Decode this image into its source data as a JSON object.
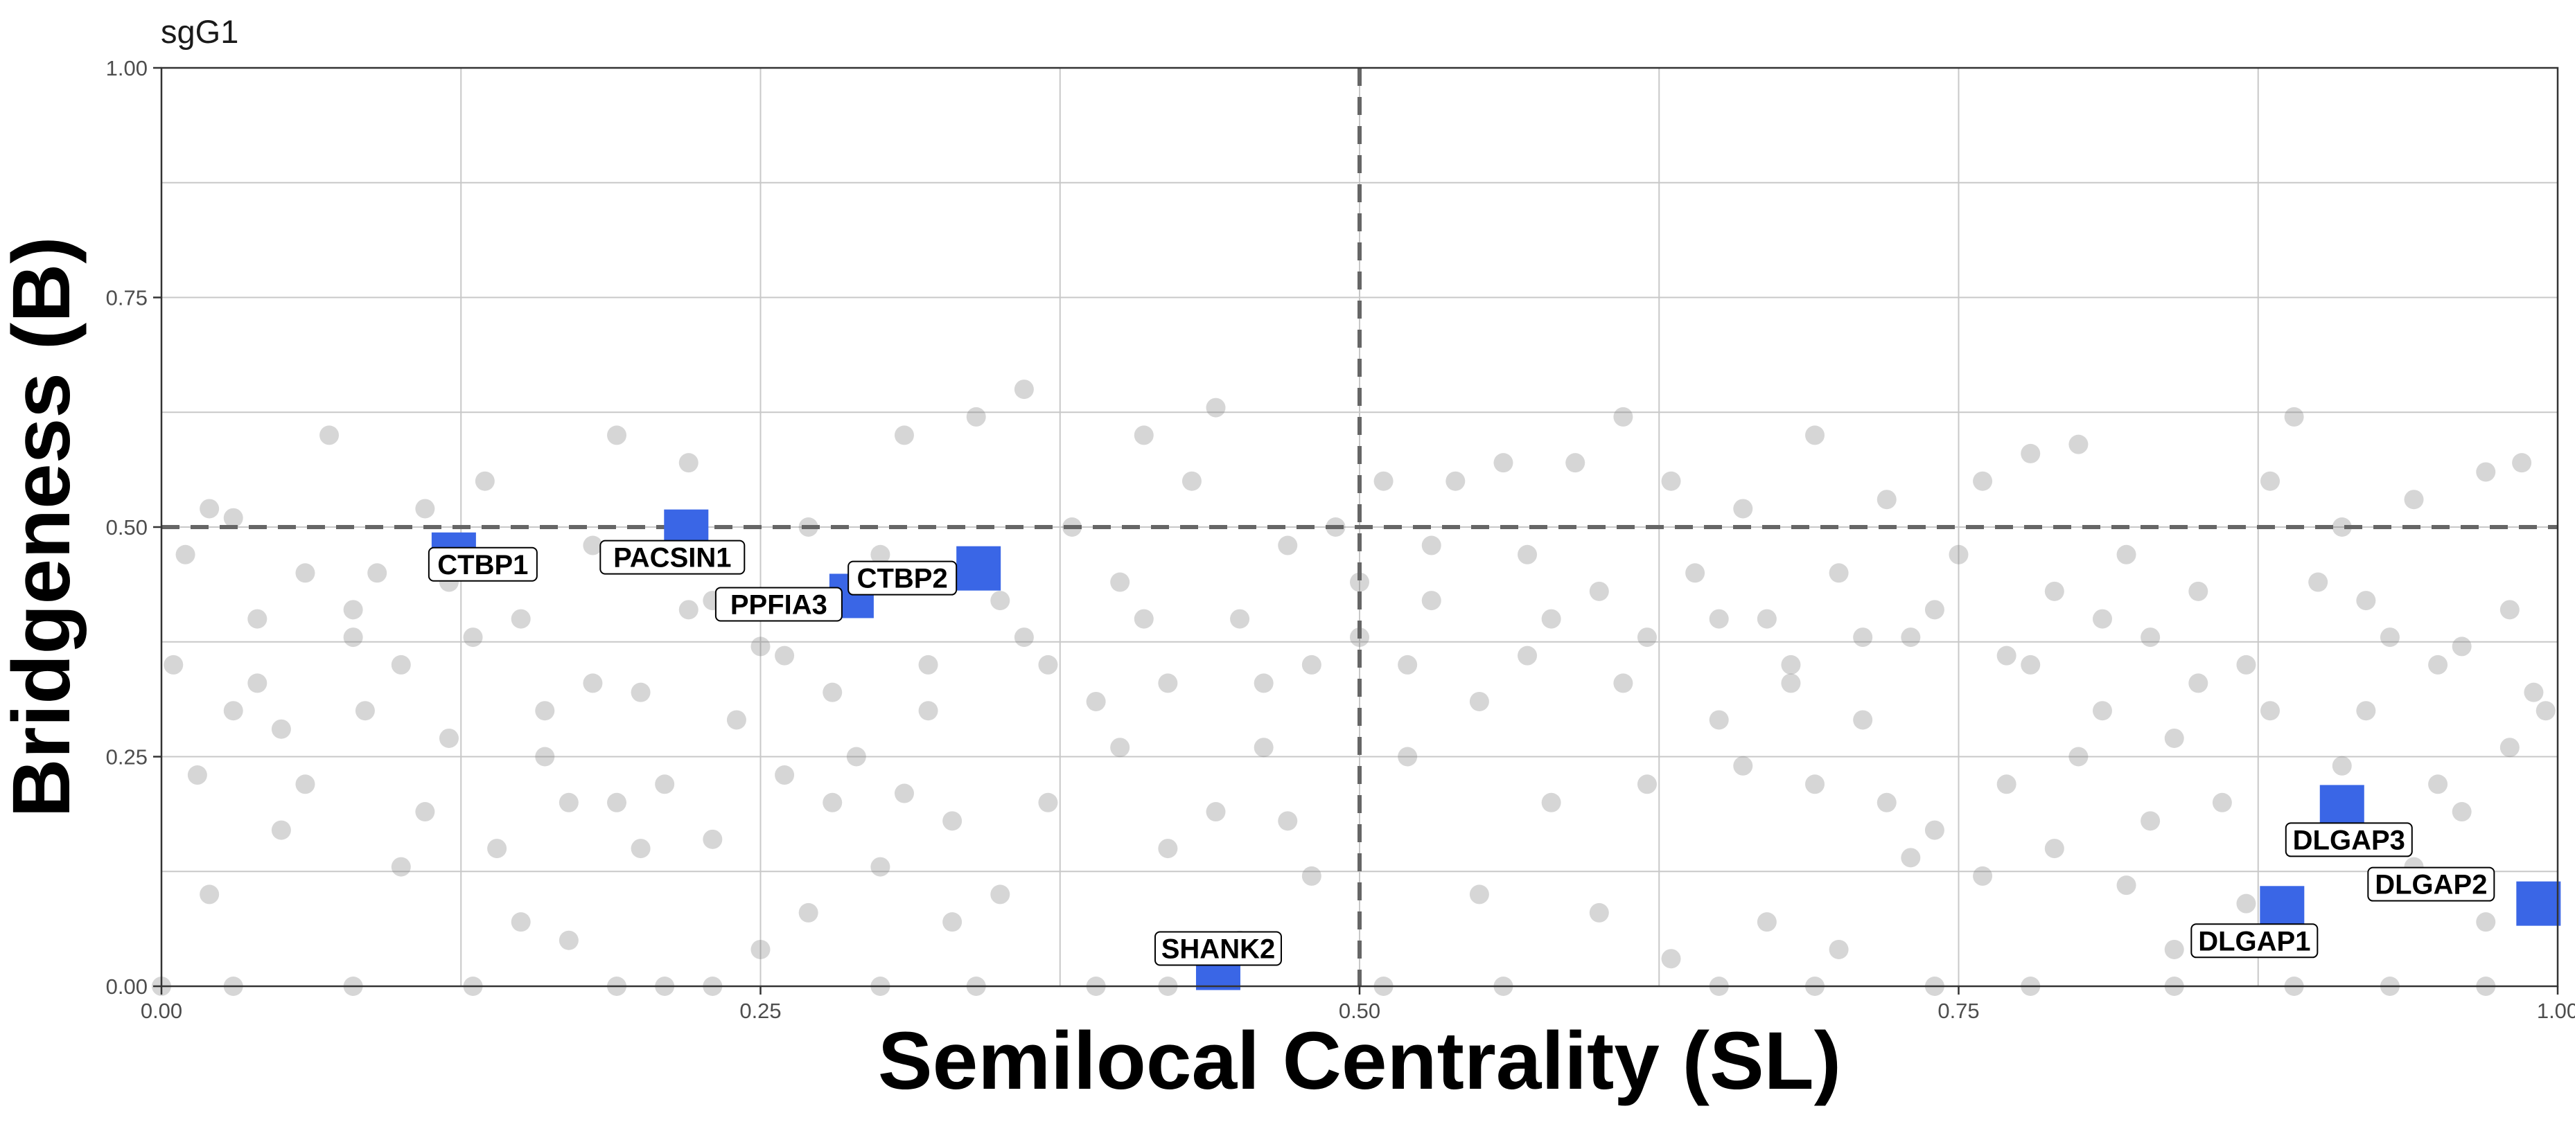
{
  "chart_data": {
    "type": "scatter",
    "title": "sgG1",
    "xlabel": "Semilocal Centrality (SL)",
    "ylabel": "Bridgeness (B)",
    "xlim": [
      0,
      1
    ],
    "ylim": [
      0,
      1
    ],
    "xticks": [
      0,
      0.25,
      0.5,
      0.75,
      1
    ],
    "xtick_labels": [
      "0.00",
      "0.25",
      "0.50",
      "0.75",
      "1.00"
    ],
    "yticks": [
      0,
      0.25,
      0.5,
      0.75,
      1
    ],
    "ytick_labels": [
      "0.00",
      "0.25",
      "0.50",
      "0.75",
      "1.00"
    ],
    "grid": true,
    "reference_lines": {
      "x": 0.5,
      "y": 0.5,
      "style": "dashed"
    },
    "colors": {
      "background_points": "#808080",
      "highlight": "#3a66e6",
      "reference": "#666666"
    },
    "highlighted_genes": [
      {
        "label": "CTBP1",
        "x": 0.122,
        "y": 0.47
      },
      {
        "label": "PACSIN1",
        "x": 0.219,
        "y": 0.495
      },
      {
        "label": "PPFIA3",
        "x": 0.288,
        "y": 0.425
      },
      {
        "label": "CTBP2",
        "x": 0.341,
        "y": 0.455
      },
      {
        "label": "SHANK2",
        "x": 0.441,
        "y": 0.02
      },
      {
        "label": "DLGAP3",
        "x": 0.91,
        "y": 0.195
      },
      {
        "label": "DLGAP2",
        "x": 0.992,
        "y": 0.09
      },
      {
        "label": "DLGAP1",
        "x": 0.885,
        "y": 0.085
      }
    ],
    "series": [
      {
        "values": [
          [
            0.01,
            0.47
          ],
          [
            0.02,
            0.52
          ],
          [
            0.03,
            0.51
          ],
          [
            0.005,
            0.35
          ],
          [
            0.015,
            0.23
          ],
          [
            0.03,
            0.3
          ],
          [
            0.04,
            0.4
          ],
          [
            0.05,
            0.28
          ],
          [
            0.06,
            0.45
          ],
          [
            0.07,
            0.6
          ],
          [
            0.08,
            0.41
          ],
          [
            0.085,
            0.3
          ],
          [
            0.09,
            0.45
          ],
          [
            0.1,
            0.35
          ],
          [
            0.11,
            0.52
          ],
          [
            0.12,
            0.27
          ],
          [
            0.13,
            0.38
          ],
          [
            0.135,
            0.55
          ],
          [
            0.14,
            0.15
          ],
          [
            0.15,
            0.4
          ],
          [
            0.16,
            0.3
          ],
          [
            0.17,
            0.2
          ],
          [
            0.18,
            0.48
          ],
          [
            0.19,
            0.6
          ],
          [
            0.2,
            0.32
          ],
          [
            0.21,
            0.22
          ],
          [
            0.22,
            0.57
          ],
          [
            0.23,
            0.42
          ],
          [
            0.24,
            0.29
          ],
          [
            0.25,
            0.37
          ],
          [
            0.26,
            0.23
          ],
          [
            0.27,
            0.5
          ],
          [
            0.28,
            0.32
          ],
          [
            0.29,
            0.25
          ],
          [
            0.3,
            0.47
          ],
          [
            0.31,
            0.6
          ],
          [
            0.32,
            0.35
          ],
          [
            0.33,
            0.18
          ],
          [
            0.34,
            0.62
          ],
          [
            0.35,
            0.42
          ],
          [
            0.36,
            0.65
          ],
          [
            0.37,
            0.35
          ],
          [
            0.38,
            0.5
          ],
          [
            0.39,
            0.31
          ],
          [
            0.4,
            0.44
          ],
          [
            0.41,
            0.6
          ],
          [
            0.42,
            0.33
          ],
          [
            0.43,
            0.55
          ],
          [
            0.44,
            0.63
          ],
          [
            0.45,
            0.4
          ],
          [
            0.46,
            0.26
          ],
          [
            0.47,
            0.48
          ],
          [
            0.48,
            0.35
          ],
          [
            0.49,
            0.5
          ],
          [
            0.5,
            0.44
          ],
          [
            0.51,
            0.55
          ],
          [
            0.52,
            0.35
          ],
          [
            0.53,
            0.48
          ],
          [
            0.54,
            0.55
          ],
          [
            0.55,
            0.31
          ],
          [
            0.56,
            0.57
          ],
          [
            0.57,
            0.47
          ],
          [
            0.58,
            0.4
          ],
          [
            0.59,
            0.57
          ],
          [
            0.6,
            0.43
          ],
          [
            0.61,
            0.62
          ],
          [
            0.62,
            0.38
          ],
          [
            0.63,
            0.55
          ],
          [
            0.64,
            0.45
          ],
          [
            0.65,
            0.29
          ],
          [
            0.66,
            0.52
          ],
          [
            0.67,
            0.4
          ],
          [
            0.68,
            0.35
          ],
          [
            0.69,
            0.6
          ],
          [
            0.7,
            0.45
          ],
          [
            0.71,
            0.29
          ],
          [
            0.72,
            0.53
          ],
          [
            0.73,
            0.38
          ],
          [
            0.74,
            0.17
          ],
          [
            0.75,
            0.47
          ],
          [
            0.76,
            0.55
          ],
          [
            0.77,
            0.36
          ],
          [
            0.78,
            0.58
          ],
          [
            0.79,
            0.43
          ],
          [
            0.8,
            0.59
          ],
          [
            0.81,
            0.3
          ],
          [
            0.82,
            0.47
          ],
          [
            0.83,
            0.38
          ],
          [
            0.84,
            0.27
          ],
          [
            0.85,
            0.43
          ],
          [
            0.86,
            0.2
          ],
          [
            0.87,
            0.35
          ],
          [
            0.88,
            0.55
          ],
          [
            0.89,
            0.62
          ],
          [
            0.9,
            0.44
          ],
          [
            0.91,
            0.5
          ],
          [
            0.92,
            0.3
          ],
          [
            0.93,
            0.38
          ],
          [
            0.94,
            0.53
          ],
          [
            0.95,
            0.22
          ],
          [
            0.96,
            0.37
          ],
          [
            0.97,
            0.56
          ],
          [
            0.98,
            0.41
          ],
          [
            0.99,
            0.32
          ],
          [
            0.995,
            0.3
          ],
          [
            0.985,
            0.57
          ],
          [
            0.02,
            0.1
          ],
          [
            0.05,
            0.17
          ],
          [
            0.1,
            0.13
          ],
          [
            0.15,
            0.07
          ],
          [
            0.17,
            0.05
          ],
          [
            0.2,
            0.15
          ],
          [
            0.25,
            0.04
          ],
          [
            0.27,
            0.08
          ],
          [
            0.3,
            0.13
          ],
          [
            0.33,
            0.07
          ],
          [
            0.35,
            0.1
          ],
          [
            0.42,
            0.15
          ],
          [
            0.45,
            0.05
          ],
          [
            0.48,
            0.12
          ],
          [
            0.52,
            0.25
          ],
          [
            0.55,
            0.1
          ],
          [
            0.6,
            0.08
          ],
          [
            0.63,
            0.03
          ],
          [
            0.67,
            0.07
          ],
          [
            0.7,
            0.04
          ],
          [
            0.73,
            0.14
          ],
          [
            0.76,
            0.12
          ],
          [
            0.79,
            0.15
          ],
          [
            0.82,
            0.11
          ],
          [
            0.84,
            0.04
          ],
          [
            0.87,
            0.09
          ],
          [
            0.94,
            0.13
          ],
          [
            0.97,
            0.07
          ],
          [
            0.06,
            0.22
          ],
          [
            0.11,
            0.19
          ],
          [
            0.16,
            0.25
          ],
          [
            0.19,
            0.2
          ],
          [
            0.23,
            0.16
          ],
          [
            0.28,
            0.2
          ],
          [
            0.31,
            0.21
          ],
          [
            0.37,
            0.2
          ],
          [
            0.4,
            0.26
          ],
          [
            0.44,
            0.19
          ],
          [
            0.47,
            0.18
          ],
          [
            0.58,
            0.2
          ],
          [
            0.62,
            0.22
          ],
          [
            0.66,
            0.24
          ],
          [
            0.69,
            0.22
          ],
          [
            0.72,
            0.2
          ],
          [
            0.77,
            0.22
          ],
          [
            0.8,
            0.25
          ],
          [
            0.83,
            0.18
          ],
          [
            0.91,
            0.24
          ],
          [
            0.96,
            0.19
          ],
          [
            0.04,
            0.33
          ],
          [
            0.08,
            0.38
          ],
          [
            0.12,
            0.44
          ],
          [
            0.18,
            0.33
          ],
          [
            0.22,
            0.41
          ],
          [
            0.26,
            0.36
          ],
          [
            0.32,
            0.3
          ],
          [
            0.36,
            0.38
          ],
          [
            0.41,
            0.4
          ],
          [
            0.46,
            0.33
          ],
          [
            0.5,
            0.38
          ],
          [
            0.53,
            0.42
          ],
          [
            0.57,
            0.36
          ],
          [
            0.61,
            0.33
          ],
          [
            0.65,
            0.4
          ],
          [
            0.68,
            0.33
          ],
          [
            0.71,
            0.38
          ],
          [
            0.74,
            0.41
          ],
          [
            0.78,
            0.35
          ],
          [
            0.81,
            0.4
          ],
          [
            0.85,
            0.33
          ],
          [
            0.88,
            0.3
          ],
          [
            0.92,
            0.42
          ],
          [
            0.95,
            0.35
          ],
          [
            0.98,
            0.26
          ],
          [
            0.0,
            0.0
          ],
          [
            0.03,
            0.0
          ],
          [
            0.08,
            0.0
          ],
          [
            0.13,
            0.0
          ],
          [
            0.19,
            0.0
          ],
          [
            0.21,
            0.0
          ],
          [
            0.23,
            0.0
          ],
          [
            0.3,
            0.0
          ],
          [
            0.34,
            0.0
          ],
          [
            0.39,
            0.0
          ],
          [
            0.42,
            0.0
          ],
          [
            0.51,
            0.0
          ],
          [
            0.56,
            0.0
          ],
          [
            0.65,
            0.0
          ],
          [
            0.69,
            0.0
          ],
          [
            0.74,
            0.0
          ],
          [
            0.78,
            0.0
          ],
          [
            0.84,
            0.0
          ],
          [
            0.89,
            0.0
          ],
          [
            0.93,
            0.0
          ],
          [
            0.97,
            0.0
          ]
        ]
      }
    ]
  }
}
